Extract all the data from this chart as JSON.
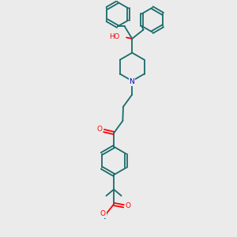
{
  "background_color": "#ebebeb",
  "bond_color": "#1a6b6b",
  "atom_colors": {
    "O": "#ff0000",
    "N": "#0000cc",
    "C": "#1a6b6b"
  },
  "figsize": [
    3.0,
    3.0
  ],
  "dpi": 100
}
